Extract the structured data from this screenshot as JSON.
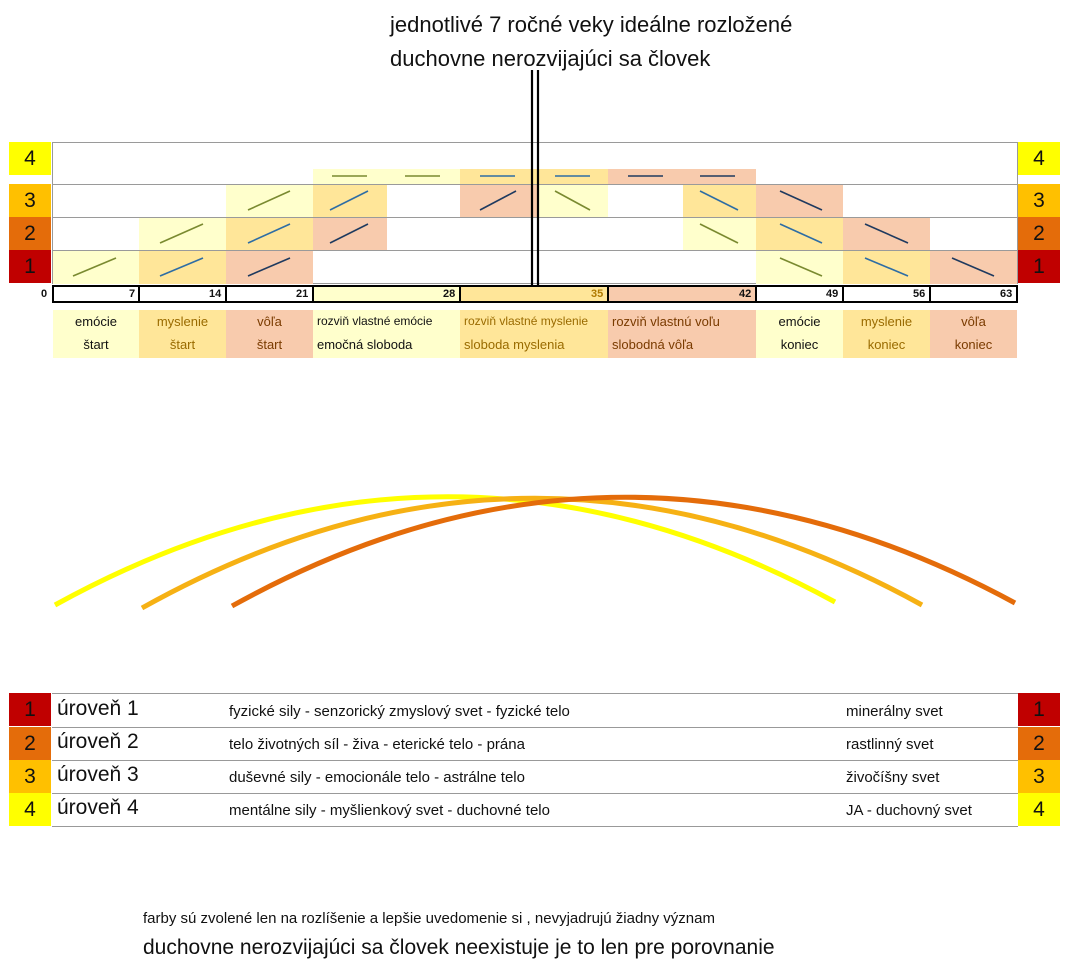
{
  "title": {
    "line1": "jednotlivé 7 ročné veky ideálne rozložené",
    "line2": "duchovne nerozvijajúci  sa človek"
  },
  "level_badges": [
    "4",
    "3",
    "2",
    "1"
  ],
  "age_ticks": [
    "0",
    "7",
    "14",
    "21",
    "28",
    "35",
    "42",
    "49",
    "56",
    "63"
  ],
  "phases": [
    {
      "line1": "emócie",
      "line2": "štart"
    },
    {
      "line1": "myslenie",
      "line2": "štart"
    },
    {
      "line1": "vôľa",
      "line2": "štart"
    },
    {
      "line1": "rozviň vlastné emócie",
      "line2": "emočná sloboda"
    },
    {
      "line1": "rozviň vlastné myslenie",
      "line2": "sloboda myslenia"
    },
    {
      "line1": "rozviň vlastnú voľu",
      "line2": "slobodná vôľa"
    },
    {
      "line1": "emócie",
      "line2": "koniec"
    },
    {
      "line1": "myslenie",
      "line2": "koniec"
    },
    {
      "line1": "vôľa",
      "line2": "koniec"
    }
  ],
  "legend": [
    {
      "num": "1",
      "name": "úroveň 1",
      "desc": "fyzické sily - senzorický zmyslový svet - fyzické telo",
      "world": "minerálny svet"
    },
    {
      "num": "2",
      "name": "úroveň 2",
      "desc": "telo životných síl - živa - eterické telo - prána",
      "world": "rastlinný svet"
    },
    {
      "num": "3",
      "name": "úroveň 3",
      "desc": "duševné sily - emocionále telo - astrálne telo",
      "world": "živočíšny svet"
    },
    {
      "num": "4",
      "name": "úroveň 4",
      "desc": "mentálne sily - myšlienkový svet - duchovné telo",
      "world": "JA - duchovný svet"
    }
  ],
  "colors": {
    "level1": "#c00000",
    "level2": "#e46c0a",
    "level3": "#ffc000",
    "level4": "#ffff00",
    "emotion_arc": "#ffff00",
    "thought_arc": "#f6b114",
    "will_arc": "#e46c0a"
  },
  "footer": {
    "note": "farby  sú zvolené len na rozlíšenie a lepšie uvedomenie si , nevyjadrujú žiadny význam",
    "statement": "duchovne nerozvijajúci  sa človek neexistuje je to len pre porovnanie"
  }
}
